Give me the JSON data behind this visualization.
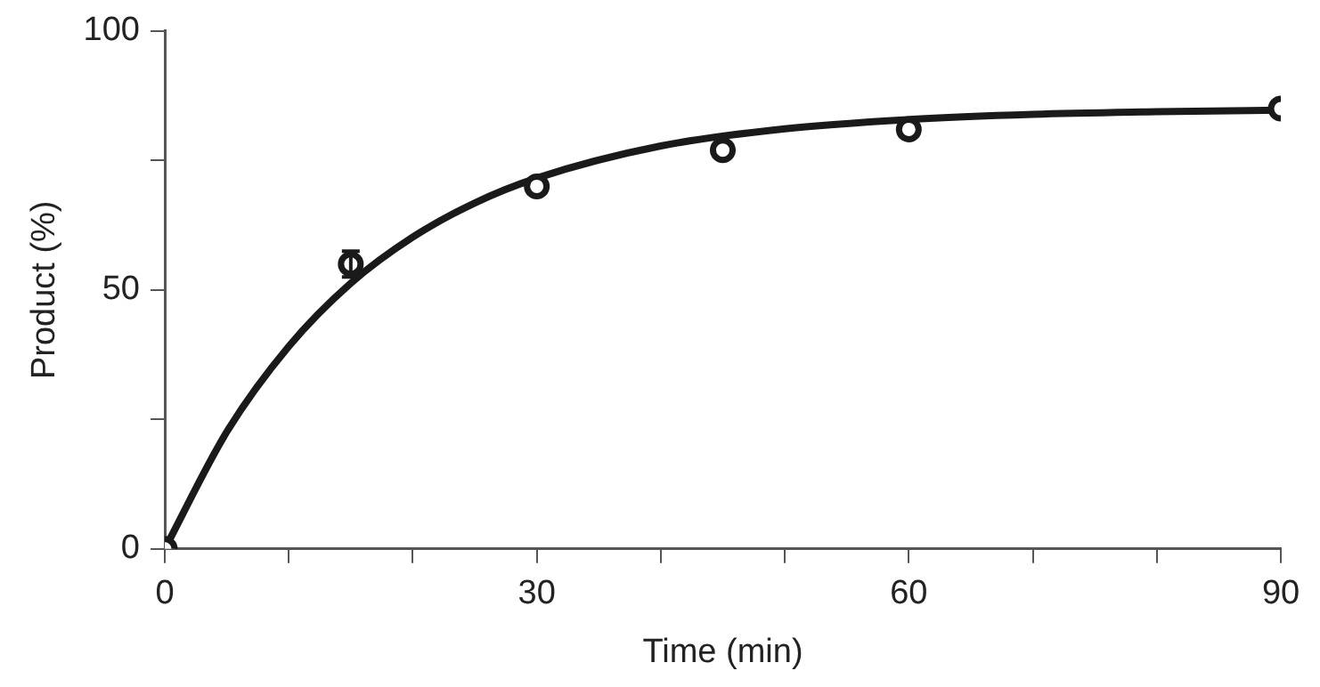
{
  "chart_data": {
    "type": "scatter",
    "xlabel": "Time (min)",
    "ylabel": "Product (%)",
    "xlim": [
      0,
      90
    ],
    "ylim": [
      0,
      100
    ],
    "xticks": [
      0,
      {
        "value": 10,
        "label": null
      },
      {
        "value": 20,
        "label": null
      },
      30,
      {
        "value": 40,
        "label": null
      },
      {
        "value": 50,
        "label": null
      },
      60,
      {
        "value": 70,
        "label": null
      },
      {
        "value": 80,
        "label": null
      },
      90
    ],
    "yticks": [
      0,
      {
        "value": 25,
        "label": null
      },
      50,
      {
        "value": 75,
        "label": null
      },
      100
    ],
    "grid": false,
    "legend": false,
    "series": [
      {
        "type": "scatter",
        "color": "#1a1a1a",
        "marker": "circle",
        "x": [
          0,
          15,
          30,
          45,
          60,
          90
        ],
        "values": [
          0,
          55,
          70,
          77,
          81,
          85
        ],
        "errors": [
          null,
          2.5,
          null,
          null,
          null,
          null
        ]
      },
      {
        "type": "line",
        "color": "#1a1a1a",
        "marker": "none",
        "line_style": "solid",
        "x": [
          0,
          5,
          10,
          15,
          20,
          25,
          30,
          40,
          50,
          60,
          70,
          80,
          90
        ],
        "values": [
          0,
          22.6,
          39.1,
          51.3,
          60.2,
          66.8,
          71.6,
          77.8,
          81.1,
          82.9,
          83.9,
          84.4,
          84.7
        ]
      }
    ]
  }
}
